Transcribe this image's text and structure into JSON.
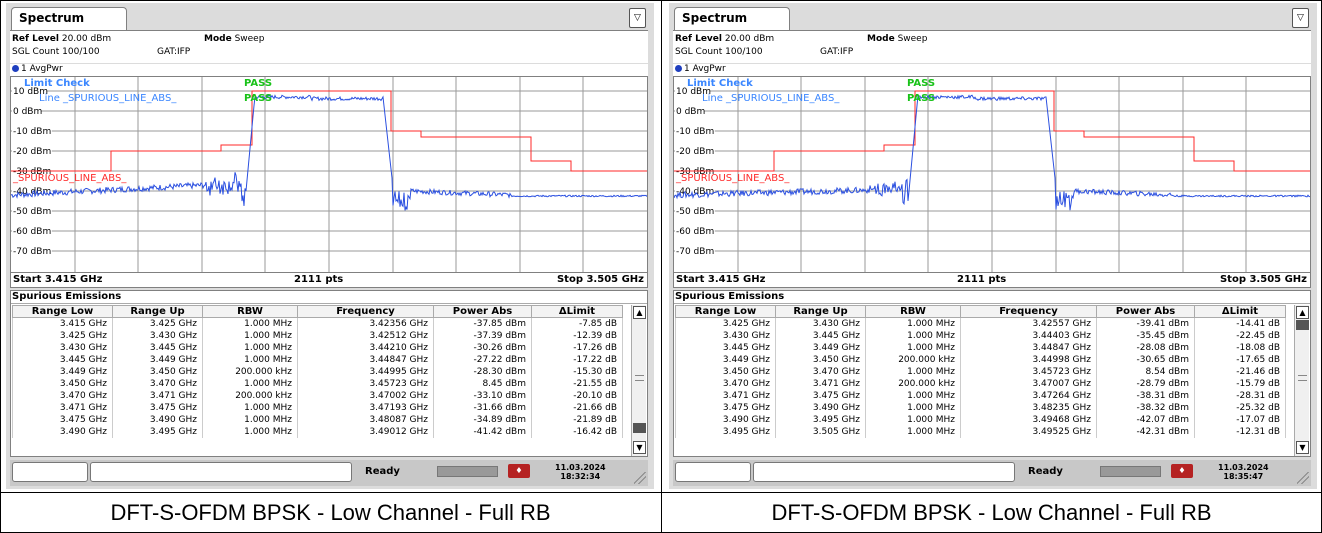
{
  "panels": [
    {
      "tab": "Spectrum",
      "ref_level_label": "Ref Level",
      "ref_level_value": "20.00 dBm",
      "mode_label": "Mode",
      "mode_value": "Sweep",
      "sgl_count": "SGL Count 100/100",
      "gat": "GAT:IFP",
      "trace_label": "1 AvgPwr",
      "limit_check_label": "Limit Check",
      "limit_line_name": "Line _SPURIOUS_LINE_ABS_",
      "limit_check_result": "PASS",
      "limit_line_result": "PASS",
      "limit_line_tag": "_SPURIOUS_LINE_ABS_",
      "y_ticks": [
        "10 dBm",
        "0 dBm",
        "-10 dBm",
        "-20 dBm",
        "-30 dBm",
        "-40 dBm",
        "-50 dBm",
        "-60 dBm",
        "-70 dBm"
      ],
      "start": "Start 3.415 GHz",
      "pts": "2111 pts",
      "stop": "Stop 3.505 GHz",
      "table_title": "Spurious Emissions",
      "columns": [
        "Range Low",
        "Range Up",
        "RBW",
        "Frequency",
        "Power Abs",
        "ΔLimit"
      ],
      "rows": [
        [
          "3.415 GHz",
          "3.425 GHz",
          "1.000 MHz",
          "3.42356 GHz",
          "-37.85 dBm",
          "-7.85 dB"
        ],
        [
          "3.425 GHz",
          "3.430 GHz",
          "1.000 MHz",
          "3.42512 GHz",
          "-37.39 dBm",
          "-12.39 dB"
        ],
        [
          "3.430 GHz",
          "3.445 GHz",
          "1.000 MHz",
          "3.44210 GHz",
          "-30.26 dBm",
          "-17.26 dB"
        ],
        [
          "3.445 GHz",
          "3.449 GHz",
          "1.000 MHz",
          "3.44847 GHz",
          "-27.22 dBm",
          "-17.22 dB"
        ],
        [
          "3.449 GHz",
          "3.450 GHz",
          "200.000 kHz",
          "3.44995 GHz",
          "-28.30 dBm",
          "-15.30 dB"
        ],
        [
          "3.450 GHz",
          "3.470 GHz",
          "1.000 MHz",
          "3.45723 GHz",
          "8.45 dBm",
          "-21.55 dB"
        ],
        [
          "3.470 GHz",
          "3.471 GHz",
          "200.000 kHz",
          "3.47002 GHz",
          "-33.10 dBm",
          "-20.10 dB"
        ],
        [
          "3.471 GHz",
          "3.475 GHz",
          "1.000 MHz",
          "3.47193 GHz",
          "-31.66 dBm",
          "-21.66 dB"
        ],
        [
          "3.475 GHz",
          "3.490 GHz",
          "1.000 MHz",
          "3.48087 GHz",
          "-34.89 dBm",
          "-21.89 dB"
        ],
        [
          "3.490 GHz",
          "3.495 GHz",
          "1.000 MHz",
          "3.49012 GHz",
          "-41.42 dBm",
          "-16.42 dB"
        ]
      ],
      "status": "Ready",
      "date": "11.03.2024",
      "time": "18:32:34",
      "caption": "DFT-S-OFDM BPSK - Low Channel - Full RB"
    },
    {
      "tab": "Spectrum",
      "ref_level_label": "Ref Level",
      "ref_level_value": "20.00 dBm",
      "mode_label": "Mode",
      "mode_value": "Sweep",
      "sgl_count": "SGL Count 100/100",
      "gat": "GAT:IFP",
      "trace_label": "1 AvgPwr",
      "limit_check_label": "Limit Check",
      "limit_line_name": "Line _SPURIOUS_LINE_ABS_",
      "limit_check_result": "PASS",
      "limit_line_result": "PASS",
      "limit_line_tag": "_SPURIOUS_LINE_ABS_",
      "y_ticks": [
        "10 dBm",
        "0 dBm",
        "-10 dBm",
        "-20 dBm",
        "-30 dBm",
        "-40 dBm",
        "-50 dBm",
        "-60 dBm",
        "-70 dBm"
      ],
      "start": "Start 3.415 GHz",
      "pts": "2111 pts",
      "stop": "Stop 3.505 GHz",
      "table_title": "Spurious Emissions",
      "columns": [
        "Range Low",
        "Range Up",
        "RBW",
        "Frequency",
        "Power Abs",
        "ΔLimit"
      ],
      "rows": [
        [
          "3.425 GHz",
          "3.430 GHz",
          "1.000 MHz",
          "3.42557 GHz",
          "-39.41 dBm",
          "-14.41 dB"
        ],
        [
          "3.430 GHz",
          "3.445 GHz",
          "1.000 MHz",
          "3.44403 GHz",
          "-35.45 dBm",
          "-22.45 dB"
        ],
        [
          "3.445 GHz",
          "3.449 GHz",
          "1.000 MHz",
          "3.44847 GHz",
          "-28.08 dBm",
          "-18.08 dB"
        ],
        [
          "3.449 GHz",
          "3.450 GHz",
          "200.000 kHz",
          "3.44998 GHz",
          "-30.65 dBm",
          "-17.65 dB"
        ],
        [
          "3.450 GHz",
          "3.470 GHz",
          "1.000 MHz",
          "3.45723 GHz",
          "8.54 dBm",
          "-21.46 dB"
        ],
        [
          "3.470 GHz",
          "3.471 GHz",
          "200.000 kHz",
          "3.47007 GHz",
          "-28.79 dBm",
          "-15.79 dB"
        ],
        [
          "3.471 GHz",
          "3.475 GHz",
          "1.000 MHz",
          "3.47264 GHz",
          "-38.31 dBm",
          "-28.31 dB"
        ],
        [
          "3.475 GHz",
          "3.490 GHz",
          "1.000 MHz",
          "3.48235 GHz",
          "-38.32 dBm",
          "-25.32 dB"
        ],
        [
          "3.490 GHz",
          "3.495 GHz",
          "1.000 MHz",
          "3.49468 GHz",
          "-42.07 dBm",
          "-17.07 dB"
        ],
        [
          "3.495 GHz",
          "3.505 GHz",
          "1.000 MHz",
          "3.49525 GHz",
          "-42.31 dBm",
          "-12.31 dB"
        ]
      ],
      "status": "Ready",
      "date": "11.03.2024",
      "time": "18:35:47",
      "caption": "DFT-S-OFDM BPSK - Low Channel - Full RB"
    }
  ],
  "colors": {
    "trace": "#2a4fe0",
    "limit_line": "#ff2a2a",
    "pass": "#19c219",
    "limit_check": "#3a86ff"
  }
}
